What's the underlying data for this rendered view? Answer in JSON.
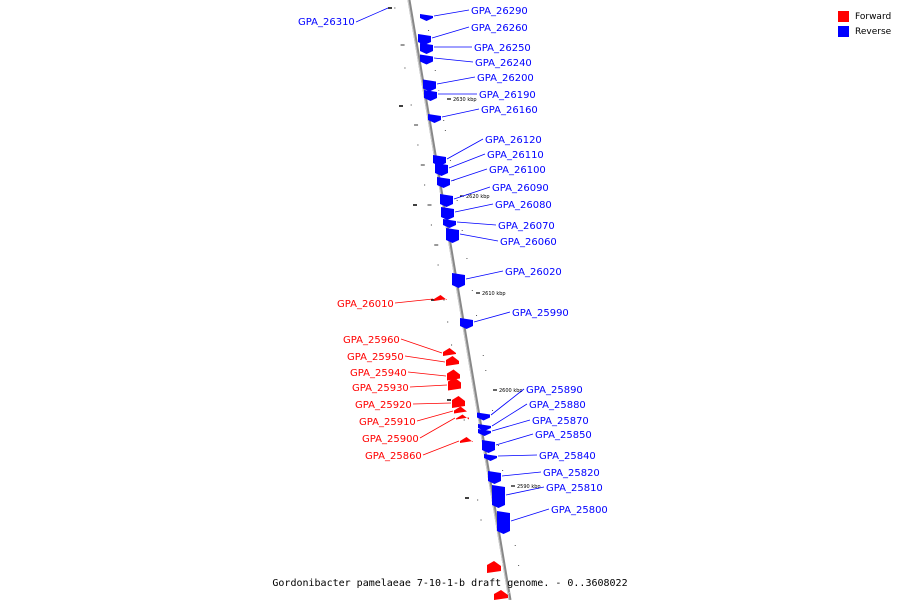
{
  "colors": {
    "forward": "#ff0000",
    "reverse": "#0000ff",
    "axis": "#888888"
  },
  "legend": {
    "forward_label": "Forward",
    "reverse_label": "Reverse"
  },
  "caption": "Gordonibacter pamelaeae 7-10-1-b draft genome. - 0..3608022",
  "kbp_markers": [
    "2630 kbp",
    "2620 kbp",
    "2610 kbp",
    "2600 kbp",
    "2590 kbp"
  ],
  "genes_reverse": [
    "GPA_26310",
    "GPA_26290",
    "GPA_26260",
    "GPA_26250",
    "GPA_26240",
    "GPA_26200",
    "GPA_26190",
    "GPA_26160",
    "GPA_26120",
    "GPA_26110",
    "GPA_26100",
    "GPA_26090",
    "GPA_26080",
    "GPA_26070",
    "GPA_26060",
    "GPA_26020",
    "GPA_25990",
    "GPA_25890",
    "GPA_25880",
    "GPA_25870",
    "GPA_25850",
    "GPA_25840",
    "GPA_25820",
    "GPA_25810",
    "GPA_25800"
  ],
  "genes_forward": [
    "GPA_26010",
    "GPA_25960",
    "GPA_25950",
    "GPA_25940",
    "GPA_25930",
    "GPA_25920",
    "GPA_25910",
    "GPA_25900",
    "GPA_25860"
  ]
}
